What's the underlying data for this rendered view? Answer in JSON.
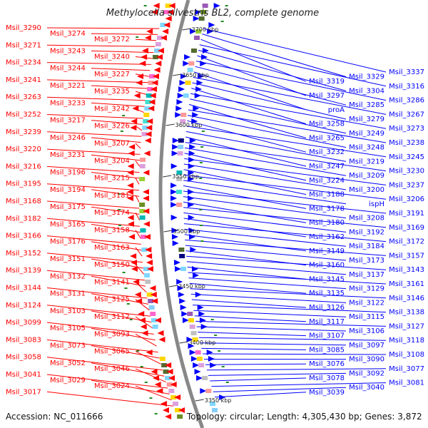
{
  "title": "Methylocella silvestris BL2, complete genome",
  "accession": "Accession: NC_011666",
  "topology": "Topology: circular; Length: 4,305,430 bp; Genes: 3,872",
  "colors": {
    "forward": "#ff0000",
    "reverse": "#0000ff",
    "backbone": "#888888",
    "rna_tick": "#228b22"
  },
  "kbp_ticks": [
    "3700 kbp",
    "3650 kbp",
    "3600 kbp",
    "3550 kbp",
    "3500 kbp",
    "3450 kbp",
    "3400 kbp",
    "3350 kbp"
  ],
  "left_labels": [
    "Msil_3290",
    "Msil_3274",
    "Msil_3272",
    "Msil_3271",
    "Msil_3243",
    "Msil_3240",
    "Msil_3234",
    "Msil_3244",
    "Msil_3227",
    "Msil_3241",
    "Msil_3221",
    "Msil_3235",
    "Msil_3263",
    "Msil_3233",
    "Msil_3242",
    "Msil_3252",
    "Msil_3217",
    "Msil_3226",
    "Msil_3239",
    "Msil_3246",
    "Msil_3207",
    "Msil_3220",
    "Msil_3231",
    "Msil_3204",
    "Msil_3216",
    "Msil_3196",
    "Msil_3215",
    "Msil_3195",
    "Msil_3194",
    "Msil_3181",
    "Msil_3168",
    "Msil_3175",
    "Msil_3174",
    "Msil_3182",
    "Msil_3165",
    "Msil_3158",
    "Msil_3166",
    "Msil_3176",
    "Msil_3163",
    "Msil_3152",
    "Msil_3151",
    "Msil_3150",
    "Msil_3139",
    "Msil_3132",
    "Msil_3141",
    "Msil_3144",
    "Msil_3131",
    "Msil_3125",
    "Msil_3124",
    "Msil_3103",
    "Msil_3112",
    "Msil_3099",
    "Msil_3105",
    "Msil_3093",
    "Msil_3083",
    "Msil_3073",
    "Msil_3065",
    "Msil_3058",
    "Msil_3052",
    "Msil_3046",
    "Msil_3041",
    "Msil_3029",
    "Msil_3024",
    "Msil_3017"
  ],
  "right_labels": [
    "Msil_3337",
    "Msil_3329",
    "Msil_3319",
    "Msil_3316",
    "Msil_3304",
    "Msil_3297",
    "Msil_3286",
    "Msil_3285",
    "proA",
    "Msil_3267",
    "Msil_3279",
    "Msil_3258",
    "Msil_3273",
    "Msil_3249",
    "Msil_3265",
    "Msil_3238",
    "Msil_3248",
    "Msil_3232",
    "Msil_3245",
    "Msil_3219",
    "Msil_3247",
    "Msil_3230",
    "Msil_3209",
    "Msil_3224",
    "Msil_3237",
    "Msil_3200",
    "Msil_3188",
    "Msil_3206",
    "ispH",
    "Msil_3178",
    "Msil_3191",
    "Msil_3208",
    "Msil_3180",
    "Msil_3169",
    "Msil_3192",
    "Msil_3162",
    "Msil_3172",
    "Msil_3184",
    "Msil_3149",
    "Msil_3157",
    "Msil_3173",
    "Msil_3160",
    "Msil_3143",
    "Msil_3137",
    "Msil_3145",
    "Msil_3161",
    "Msil_3129",
    "Msil_3135",
    "Msil_3146",
    "Msil_3122",
    "Msil_3126",
    "Msil_3138",
    "Msil_3115",
    "Msil_3117",
    "Msil_3127",
    "Msil_3106",
    "Msil_3107",
    "Msil_3118",
    "Msil_3097",
    "Msil_3085",
    "Msil_3108",
    "Msil_3090",
    "Msil_3076",
    "Msil_3077",
    "Msil_3092",
    "Msil_3078",
    "Msil_3081",
    "Msil_3040",
    "Msil_3039"
  ]
}
